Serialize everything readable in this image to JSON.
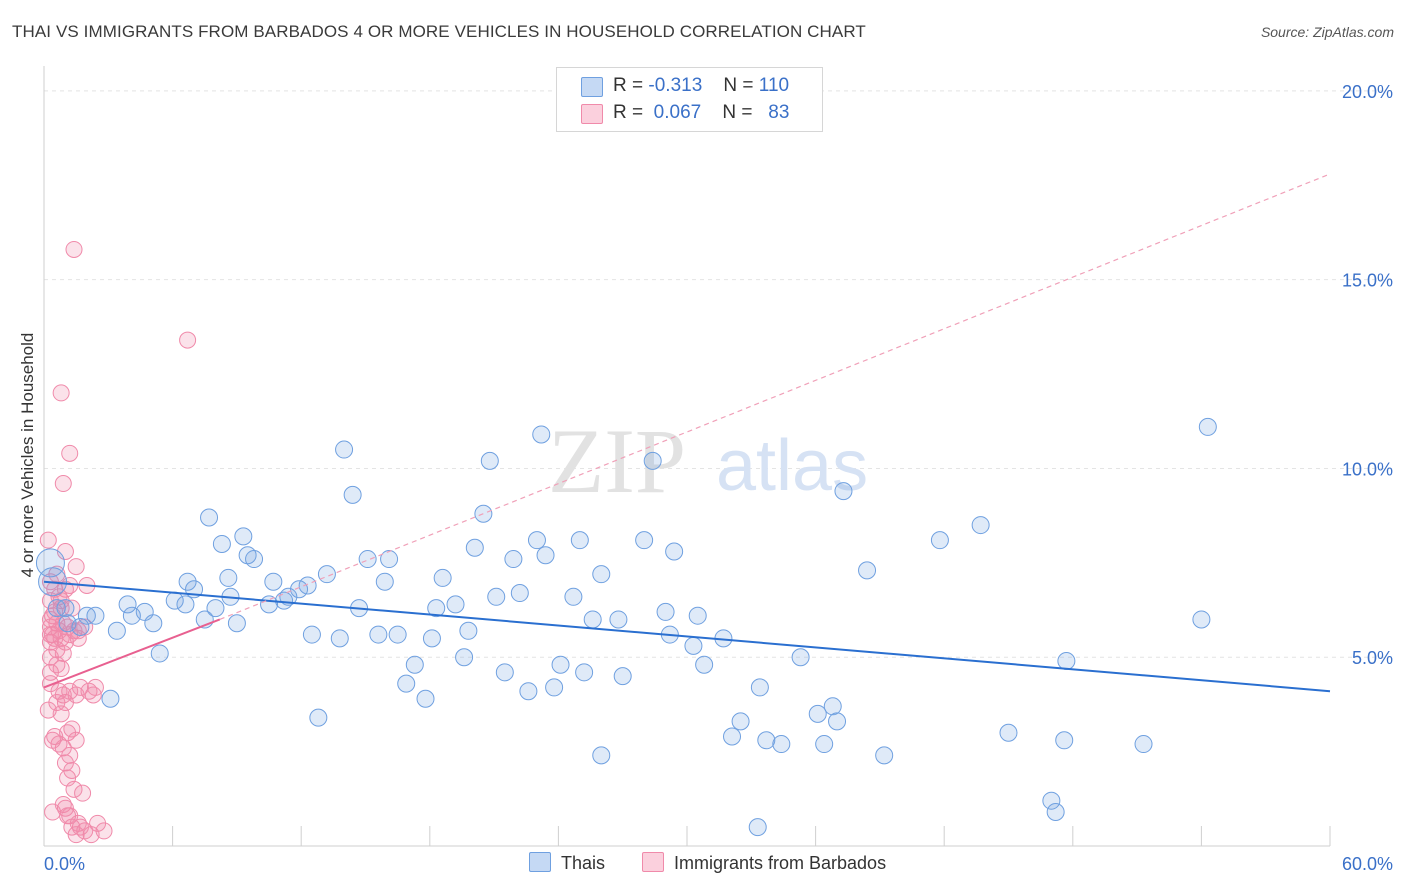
{
  "title": "THAI VS IMMIGRANTS FROM BARBADOS 4 OR MORE VEHICLES IN HOUSEHOLD CORRELATION CHART",
  "source": "Source: ZipAtlas.com",
  "watermark": {
    "zip": "ZIP",
    "atlas": "atlas"
  },
  "legend": {
    "rows": [
      {
        "r_label": "R =",
        "r_value": "-0.313",
        "n_label": "N =",
        "n_value": "110",
        "color": "#6fa0e0"
      },
      {
        "r_label": "R =",
        "r_value": "0.067",
        "n_label": "N =",
        "n_value": "83",
        "color": "#f08aaa"
      }
    ]
  },
  "bottom_legend": {
    "thais": "Thais",
    "barbados": "Immigrants from Barbados"
  },
  "chart_data": {
    "type": "scatter",
    "title": "THAI VS IMMIGRANTS FROM BARBADOS 4 OR MORE VEHICLES IN HOUSEHOLD CORRELATION CHART",
    "xlabel": "",
    "ylabel": "4 or more Vehicles in Household",
    "xlim": [
      0,
      60
    ],
    "ylim": [
      0,
      20.5
    ],
    "x_tick_labels": [
      "0.0%",
      "60.0%"
    ],
    "y_ticks": [
      5,
      10,
      15,
      20
    ],
    "y_tick_labels": [
      "5.0%",
      "10.0%",
      "15.0%",
      "20.0%"
    ],
    "grid": true,
    "legend_position": "top-center",
    "colors": {
      "thais": "#6fa0e0",
      "barbados": "#f08aaa",
      "thais_line": "#2a6fd0",
      "barbados_line": "#e86090",
      "axis_label": "#3a70c8"
    },
    "series": [
      {
        "name": "Thais",
        "color": "#6fa0e0",
        "points": [
          [
            0.3,
            7.5
          ],
          [
            0.4,
            7.0
          ],
          [
            1.0,
            6.3
          ],
          [
            1.7,
            5.8
          ],
          [
            2.4,
            6.1
          ],
          [
            3.1,
            3.9
          ],
          [
            3.4,
            5.7
          ],
          [
            3.9,
            6.4
          ],
          [
            4.1,
            6.1
          ],
          [
            4.7,
            6.2
          ],
          [
            5.1,
            5.9
          ],
          [
            5.4,
            5.1
          ],
          [
            6.1,
            6.5
          ],
          [
            6.6,
            6.4
          ],
          [
            6.7,
            7.0
          ],
          [
            7.0,
            6.8
          ],
          [
            7.5,
            6.0
          ],
          [
            7.7,
            8.7
          ],
          [
            8.0,
            6.3
          ],
          [
            8.3,
            8.0
          ],
          [
            8.6,
            7.1
          ],
          [
            9.0,
            5.9
          ],
          [
            9.3,
            8.2
          ],
          [
            9.5,
            7.7
          ],
          [
            9.8,
            7.6
          ],
          [
            10.5,
            6.4
          ],
          [
            10.7,
            7.0
          ],
          [
            11.2,
            6.5
          ],
          [
            11.4,
            6.6
          ],
          [
            11.9,
            6.8
          ],
          [
            12.3,
            6.9
          ],
          [
            12.5,
            5.6
          ],
          [
            12.8,
            3.4
          ],
          [
            13.2,
            7.2
          ],
          [
            13.8,
            5.5
          ],
          [
            14.0,
            10.5
          ],
          [
            14.4,
            9.3
          ],
          [
            14.7,
            6.3
          ],
          [
            15.1,
            7.6
          ],
          [
            15.6,
            5.6
          ],
          [
            15.9,
            7.0
          ],
          [
            16.1,
            7.6
          ],
          [
            16.5,
            5.6
          ],
          [
            16.9,
            4.3
          ],
          [
            17.3,
            4.8
          ],
          [
            17.8,
            3.9
          ],
          [
            18.1,
            5.5
          ],
          [
            18.3,
            6.3
          ],
          [
            18.6,
            7.1
          ],
          [
            19.2,
            6.4
          ],
          [
            19.6,
            5.0
          ],
          [
            19.8,
            5.7
          ],
          [
            20.1,
            7.9
          ],
          [
            20.5,
            8.8
          ],
          [
            20.8,
            10.2
          ],
          [
            21.1,
            6.6
          ],
          [
            21.5,
            4.6
          ],
          [
            21.9,
            7.6
          ],
          [
            22.2,
            6.7
          ],
          [
            22.6,
            4.1
          ],
          [
            23.0,
            8.1
          ],
          [
            23.2,
            10.9
          ],
          [
            23.4,
            7.7
          ],
          [
            23.8,
            4.2
          ],
          [
            24.1,
            4.8
          ],
          [
            24.7,
            6.6
          ],
          [
            25.0,
            8.1
          ],
          [
            25.2,
            4.6
          ],
          [
            25.6,
            6.0
          ],
          [
            26.0,
            7.2
          ],
          [
            26.0,
            2.4
          ],
          [
            26.8,
            6.0
          ],
          [
            27.0,
            4.5
          ],
          [
            28.0,
            8.1
          ],
          [
            28.4,
            10.2
          ],
          [
            29.0,
            6.2
          ],
          [
            29.2,
            5.6
          ],
          [
            29.4,
            7.8
          ],
          [
            30.3,
            5.3
          ],
          [
            30.5,
            6.1
          ],
          [
            30.8,
            4.8
          ],
          [
            31.7,
            5.5
          ],
          [
            32.1,
            2.9
          ],
          [
            32.5,
            3.3
          ],
          [
            33.4,
            4.2
          ],
          [
            33.7,
            2.8
          ],
          [
            34.4,
            2.7
          ],
          [
            35.3,
            5.0
          ],
          [
            36.1,
            3.5
          ],
          [
            36.4,
            2.7
          ],
          [
            36.8,
            3.7
          ],
          [
            37.0,
            3.3
          ],
          [
            37.3,
            9.4
          ],
          [
            38.4,
            7.3
          ],
          [
            39.2,
            2.4
          ],
          [
            41.8,
            8.1
          ],
          [
            43.7,
            8.5
          ],
          [
            45.0,
            3.0
          ],
          [
            47.0,
            1.2
          ],
          [
            47.2,
            0.9
          ],
          [
            47.6,
            2.8
          ],
          [
            47.7,
            4.9
          ],
          [
            51.3,
            2.7
          ],
          [
            54.0,
            6.0
          ],
          [
            54.3,
            11.1
          ],
          [
            33.3,
            0.5
          ],
          [
            8.7,
            6.6
          ],
          [
            2.0,
            6.1
          ],
          [
            1.1,
            5.9
          ],
          [
            0.6,
            6.3
          ]
        ]
      },
      {
        "name": "Immigrants from Barbados",
        "color": "#f08aaa",
        "points": [
          [
            0.2,
            8.1
          ],
          [
            0.3,
            7.0
          ],
          [
            0.3,
            6.5
          ],
          [
            0.3,
            6.0
          ],
          [
            0.3,
            5.8
          ],
          [
            0.3,
            5.6
          ],
          [
            0.3,
            5.4
          ],
          [
            0.3,
            5.0
          ],
          [
            0.3,
            4.6
          ],
          [
            0.4,
            2.8
          ],
          [
            0.4,
            0.9
          ],
          [
            0.5,
            6.8
          ],
          [
            0.5,
            6.2
          ],
          [
            0.5,
            5.5
          ],
          [
            0.6,
            5.9
          ],
          [
            0.6,
            5.2
          ],
          [
            0.6,
            4.8
          ],
          [
            0.7,
            6.6
          ],
          [
            0.7,
            5.7
          ],
          [
            0.7,
            4.1
          ],
          [
            0.7,
            2.7
          ],
          [
            0.8,
            12.0
          ],
          [
            0.8,
            6.5
          ],
          [
            0.8,
            5.5
          ],
          [
            0.8,
            4.7
          ],
          [
            0.8,
            3.5
          ],
          [
            0.9,
            9.6
          ],
          [
            0.9,
            5.9
          ],
          [
            0.9,
            4.0
          ],
          [
            0.9,
            2.6
          ],
          [
            1.0,
            7.8
          ],
          [
            1.0,
            6.8
          ],
          [
            1.0,
            5.4
          ],
          [
            1.0,
            3.8
          ],
          [
            1.0,
            2.2
          ],
          [
            1.0,
            1.0
          ],
          [
            1.1,
            5.8
          ],
          [
            1.1,
            3.0
          ],
          [
            1.1,
            1.8
          ],
          [
            1.2,
            10.4
          ],
          [
            1.2,
            6.9
          ],
          [
            1.2,
            5.6
          ],
          [
            1.2,
            4.1
          ],
          [
            1.2,
            2.4
          ],
          [
            1.2,
            0.8
          ],
          [
            1.3,
            6.3
          ],
          [
            1.3,
            3.1
          ],
          [
            1.3,
            0.5
          ],
          [
            1.4,
            15.8
          ],
          [
            1.4,
            5.7
          ],
          [
            1.4,
            1.5
          ],
          [
            1.5,
            7.4
          ],
          [
            1.5,
            4.0
          ],
          [
            1.5,
            2.8
          ],
          [
            1.5,
            0.3
          ],
          [
            1.6,
            5.7
          ],
          [
            1.6,
            0.6
          ],
          [
            1.7,
            4.2
          ],
          [
            1.7,
            0.5
          ],
          [
            1.8,
            1.4
          ],
          [
            1.9,
            0.4
          ],
          [
            2.0,
            6.9
          ],
          [
            2.1,
            4.1
          ],
          [
            2.2,
            0.3
          ],
          [
            2.3,
            4.0
          ],
          [
            2.4,
            4.2
          ],
          [
            2.5,
            0.6
          ],
          [
            2.8,
            0.4
          ],
          [
            6.7,
            13.4
          ],
          [
            0.4,
            5.6
          ],
          [
            0.5,
            2.9
          ],
          [
            0.6,
            3.8
          ],
          [
            0.9,
            1.1
          ],
          [
            1.1,
            0.8
          ],
          [
            0.2,
            3.6
          ],
          [
            0.6,
            7.2
          ],
          [
            0.4,
            6.1
          ],
          [
            0.8,
            6.3
          ],
          [
            1.6,
            5.5
          ],
          [
            1.9,
            5.8
          ],
          [
            0.3,
            4.3
          ],
          [
            0.9,
            5.1
          ],
          [
            1.3,
            2.0
          ]
        ]
      }
    ],
    "trend_lines": [
      {
        "series": "Thais",
        "x": [
          0,
          60
        ],
        "y": [
          7.0,
          4.1
        ]
      },
      {
        "series": "Immigrants from Barbados",
        "x": [
          0,
          8.2
        ],
        "y": [
          4.2,
          6.0
        ],
        "dashed_extension_to": [
          60,
          17.8
        ]
      }
    ]
  }
}
